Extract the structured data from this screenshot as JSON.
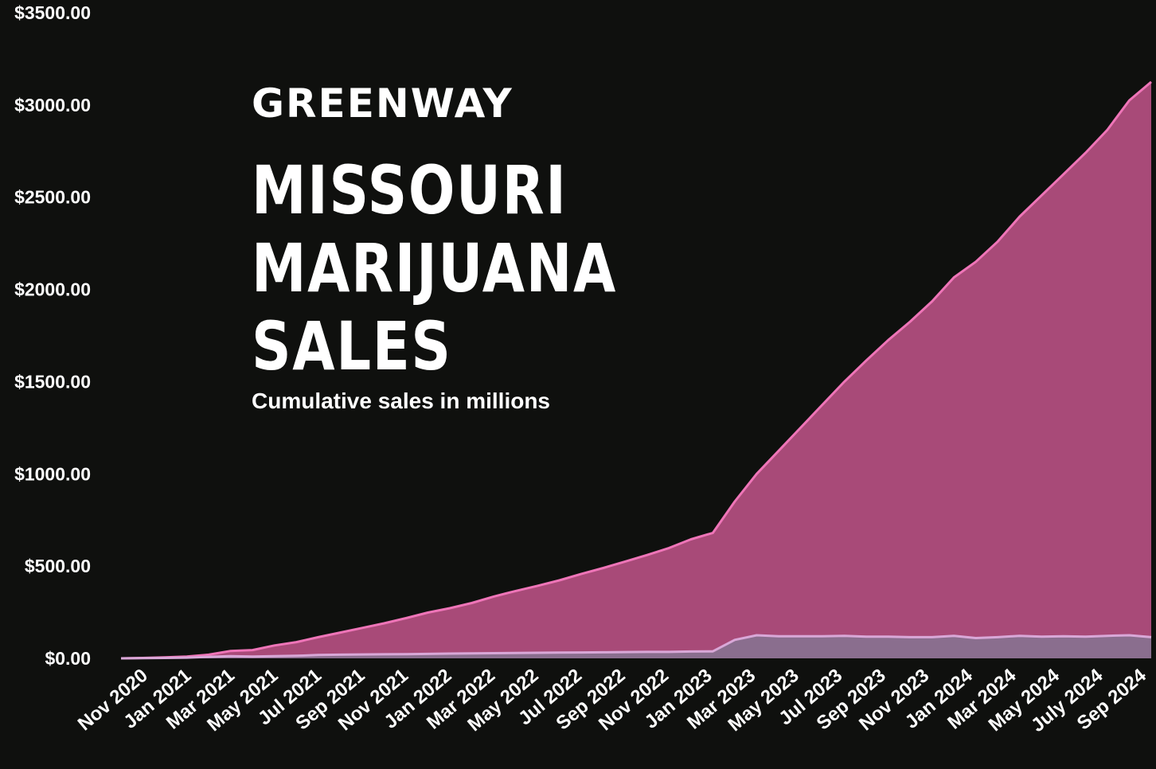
{
  "brand": "GREENWAY",
  "title_lines": [
    "MISSOURI",
    "MARIJUANA",
    "SALES"
  ],
  "subtitle": "Cumulative sales in millions",
  "colors": {
    "background": "#0f100e",
    "total_fill": "#a84a78",
    "total_line": "#ef75b8",
    "medical_fill": "#8a6e8e",
    "medical_line": "#d9a8d8"
  },
  "chart_data": {
    "type": "area",
    "title": "MISSOURI MARIJUANA SALES",
    "subtitle": "Cumulative sales in millions",
    "xlabel": "",
    "ylabel": "",
    "ylim": [
      0,
      3500
    ],
    "yticks": [
      "$0.00",
      "$500.00",
      "$1000.00",
      "$1500.00",
      "$2000.00",
      "$2500.00",
      "$3000.00",
      "$3500.00"
    ],
    "ytick_values": [
      0,
      500,
      1000,
      1500,
      2000,
      2500,
      3000,
      3500
    ],
    "xticks": [
      "Nov 2020",
      "Jan 2021",
      "Mar 2021",
      "May 2021",
      "Jul 2021",
      "Sep 2021",
      "Nov 2021",
      "Jan 2022",
      "Mar 2022",
      "May 2022",
      "Jul 2022",
      "Sep 2022",
      "Nov 2022",
      "Jan 2023",
      "Mar 2023",
      "May 2023",
      "Jul 2023",
      "Sep 2023",
      "Nov 2023",
      "Jan 2024",
      "Mar 2024",
      "May 2024",
      "July 2024",
      "Sep 2024"
    ],
    "grid": false,
    "legend": "none",
    "series": [
      {
        "values": [
          0,
          2,
          5,
          10,
          20,
          40,
          45,
          70,
          88,
          115,
          140,
          165,
          190,
          218,
          248,
          272,
          300,
          335,
          365,
          393,
          423,
          458,
          490,
          525,
          560,
          598,
          645,
          680,
          850,
          1000,
          1125,
          1250,
          1375,
          1500,
          1615,
          1725,
          1825,
          1935,
          2065,
          2150,
          2260,
          2395,
          2510,
          2625,
          2740,
          2865,
          3025,
          3125
        ]
      },
      {
        "values": [
          0,
          1,
          2,
          4,
          8,
          12,
          10,
          12,
          14,
          18,
          20,
          21,
          22,
          23,
          24,
          26,
          27,
          28,
          29,
          30,
          31,
          32,
          33,
          34,
          35,
          35,
          37,
          38,
          100,
          125,
          120,
          120,
          120,
          122,
          118,
          118,
          115,
          115,
          122,
          110,
          115,
          122,
          118,
          120,
          118,
          122,
          125,
          115
        ]
      }
    ]
  }
}
